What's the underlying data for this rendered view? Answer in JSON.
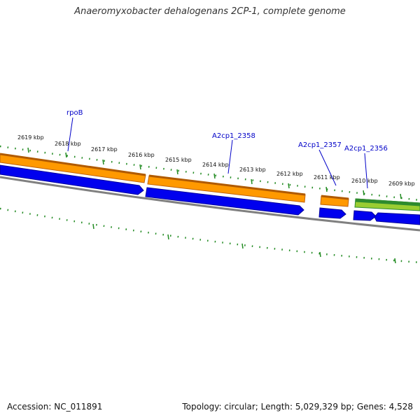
{
  "title": "Anaeromyxobacter dehalogenans 2CP-1, complete genome",
  "footer": {
    "accession": "Accession: NC_011891",
    "summary": "Topology: circular; Length: 5,029,329 bp; Genes: 4,528"
  },
  "colors": {
    "forward_cds": "#ff9900",
    "forward_cds_edge": "#c06000",
    "reverse_cds": "#0000ee",
    "rna_feature": "#2e8b2e",
    "rna_feature_light": "#9acd32",
    "backbone": "#888888",
    "tick": "#228b22",
    "gene_label": "#0000c8"
  },
  "kbp_labels": [
    "2619 kbp",
    "2618 kbp",
    "2617 kbp",
    "2616 kbp",
    "2615 kbp",
    "2614 kbp",
    "2613 kbp",
    "2612 kbp",
    "2611 kbp",
    "2610 kbp",
    "2609 kbp"
  ],
  "gene_labels": [
    "rpoB",
    "A2cp1_2358",
    "A2cp1_2357",
    "A2cp1_2356"
  ]
}
